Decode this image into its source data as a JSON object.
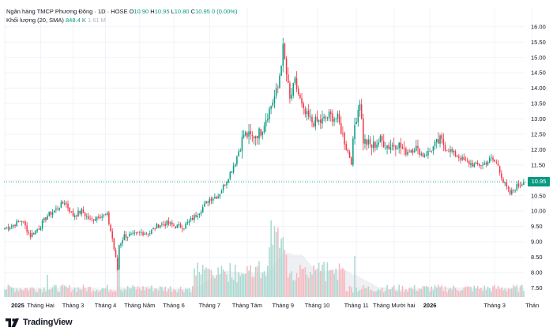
{
  "header": {
    "title": "Ngân hàng TMCP Phương Đông · 1D · HOSE",
    "ohlc": [
      {
        "label": "O",
        "value": "10.90"
      },
      {
        "label": "H",
        "value": "10.95"
      },
      {
        "label": "L",
        "value": "10.80"
      },
      {
        "label": "C",
        "value": "10.95"
      }
    ],
    "change": "0 (0.00%)",
    "volume_label": "Khối lượng (20, SMA)",
    "volume_value": "848.4 K",
    "volume_ma": "1.61 M"
  },
  "footer": {
    "logo_text": "TradingView"
  },
  "colors": {
    "up": "#089981",
    "down": "#f23645",
    "up_vol": "#a7d9cf",
    "down_vol": "#f7b6bd",
    "grid": "#f0f3fa",
    "axis_text": "#131722"
  },
  "chart_data": {
    "type": "candlestick",
    "last_price": "10.95",
    "y_axis": {
      "ticks": [
        "16.00",
        "15.50",
        "15.00",
        "14.50",
        "14.00",
        "13.50",
        "13.00",
        "12.50",
        "12.00",
        "11.50",
        "11.00",
        "10.50",
        "10.00",
        "9.50",
        "9.00",
        "8.50",
        "8.00",
        "7.50"
      ],
      "range": [
        7.2,
        16.2
      ]
    },
    "x_axis": {
      "ticks": [
        {
          "label": "2025",
          "bold": true,
          "index": 0
        },
        {
          "label": "Tháng Hai",
          "bold": false,
          "index": 21
        },
        {
          "label": "Tháng 3",
          "bold": false,
          "index": 40
        },
        {
          "label": "Tháng 4",
          "bold": false,
          "index": 59
        },
        {
          "label": "Tháng Năm",
          "bold": false,
          "index": 79
        },
        {
          "label": "Tháng 6",
          "bold": false,
          "index": 99
        },
        {
          "label": "Tháng 7",
          "bold": false,
          "index": 120
        },
        {
          "label": "Tháng Tám",
          "bold": false,
          "index": 142
        },
        {
          "label": "Tháng 9",
          "bold": false,
          "index": 163
        },
        {
          "label": "Tháng 10",
          "bold": false,
          "index": 183
        },
        {
          "label": "Tháng 11",
          "bold": false,
          "index": 206
        },
        {
          "label": "Tháng Mười hai",
          "bold": false,
          "index": 228
        },
        {
          "label": "2026",
          "bold": true,
          "index": 249
        },
        {
          "label": "Tháng 3",
          "bold": false,
          "index": 287
        },
        {
          "label": "Thán",
          "bold": false,
          "index": 309
        }
      ]
    },
    "anchors": [
      [
        0,
        9.45
      ],
      [
        5,
        9.55
      ],
      [
        10,
        9.7
      ],
      [
        15,
        9.2
      ],
      [
        20,
        9.45
      ],
      [
        25,
        9.85
      ],
      [
        30,
        10.05
      ],
      [
        35,
        10.3
      ],
      [
        40,
        9.85
      ],
      [
        45,
        10.0
      ],
      [
        50,
        9.7
      ],
      [
        55,
        9.85
      ],
      [
        60,
        9.85
      ],
      [
        63,
        9.1
      ],
      [
        66,
        8.1
      ],
      [
        67,
        8.9
      ],
      [
        70,
        9.2
      ],
      [
        75,
        9.2
      ],
      [
        80,
        9.3
      ],
      [
        85,
        9.3
      ],
      [
        90,
        9.55
      ],
      [
        95,
        9.6
      ],
      [
        100,
        9.5
      ],
      [
        105,
        9.5
      ],
      [
        110,
        9.75
      ],
      [
        115,
        10.05
      ],
      [
        120,
        10.4
      ],
      [
        125,
        10.5
      ],
      [
        130,
        11.0
      ],
      [
        135,
        11.6
      ],
      [
        140,
        12.5
      ],
      [
        145,
        12.4
      ],
      [
        150,
        12.6
      ],
      [
        155,
        13.3
      ],
      [
        160,
        14.0
      ],
      [
        163,
        15.3
      ],
      [
        167,
        13.6
      ],
      [
        170,
        14.2
      ],
      [
        175,
        13.2
      ],
      [
        180,
        12.9
      ],
      [
        185,
        12.9
      ],
      [
        190,
        13.1
      ],
      [
        195,
        13.0
      ],
      [
        200,
        12.1
      ],
      [
        203,
        11.6
      ],
      [
        205,
        12.8
      ],
      [
        208,
        13.6
      ],
      [
        210,
        12.3
      ],
      [
        215,
        12.1
      ],
      [
        220,
        12.3
      ],
      [
        225,
        12.1
      ],
      [
        230,
        12.2
      ],
      [
        235,
        11.9
      ],
      [
        240,
        12.1
      ],
      [
        245,
        11.8
      ],
      [
        250,
        12.0
      ],
      [
        255,
        12.3
      ],
      [
        260,
        12.0
      ],
      [
        265,
        11.8
      ],
      [
        270,
        11.6
      ],
      [
        275,
        11.5
      ],
      [
        280,
        11.5
      ],
      [
        285,
        11.7
      ],
      [
        289,
        11.5
      ],
      [
        292,
        10.95
      ],
      [
        296,
        10.55
      ],
      [
        300,
        10.8
      ],
      [
        304,
        10.95
      ]
    ],
    "count": 305
  }
}
